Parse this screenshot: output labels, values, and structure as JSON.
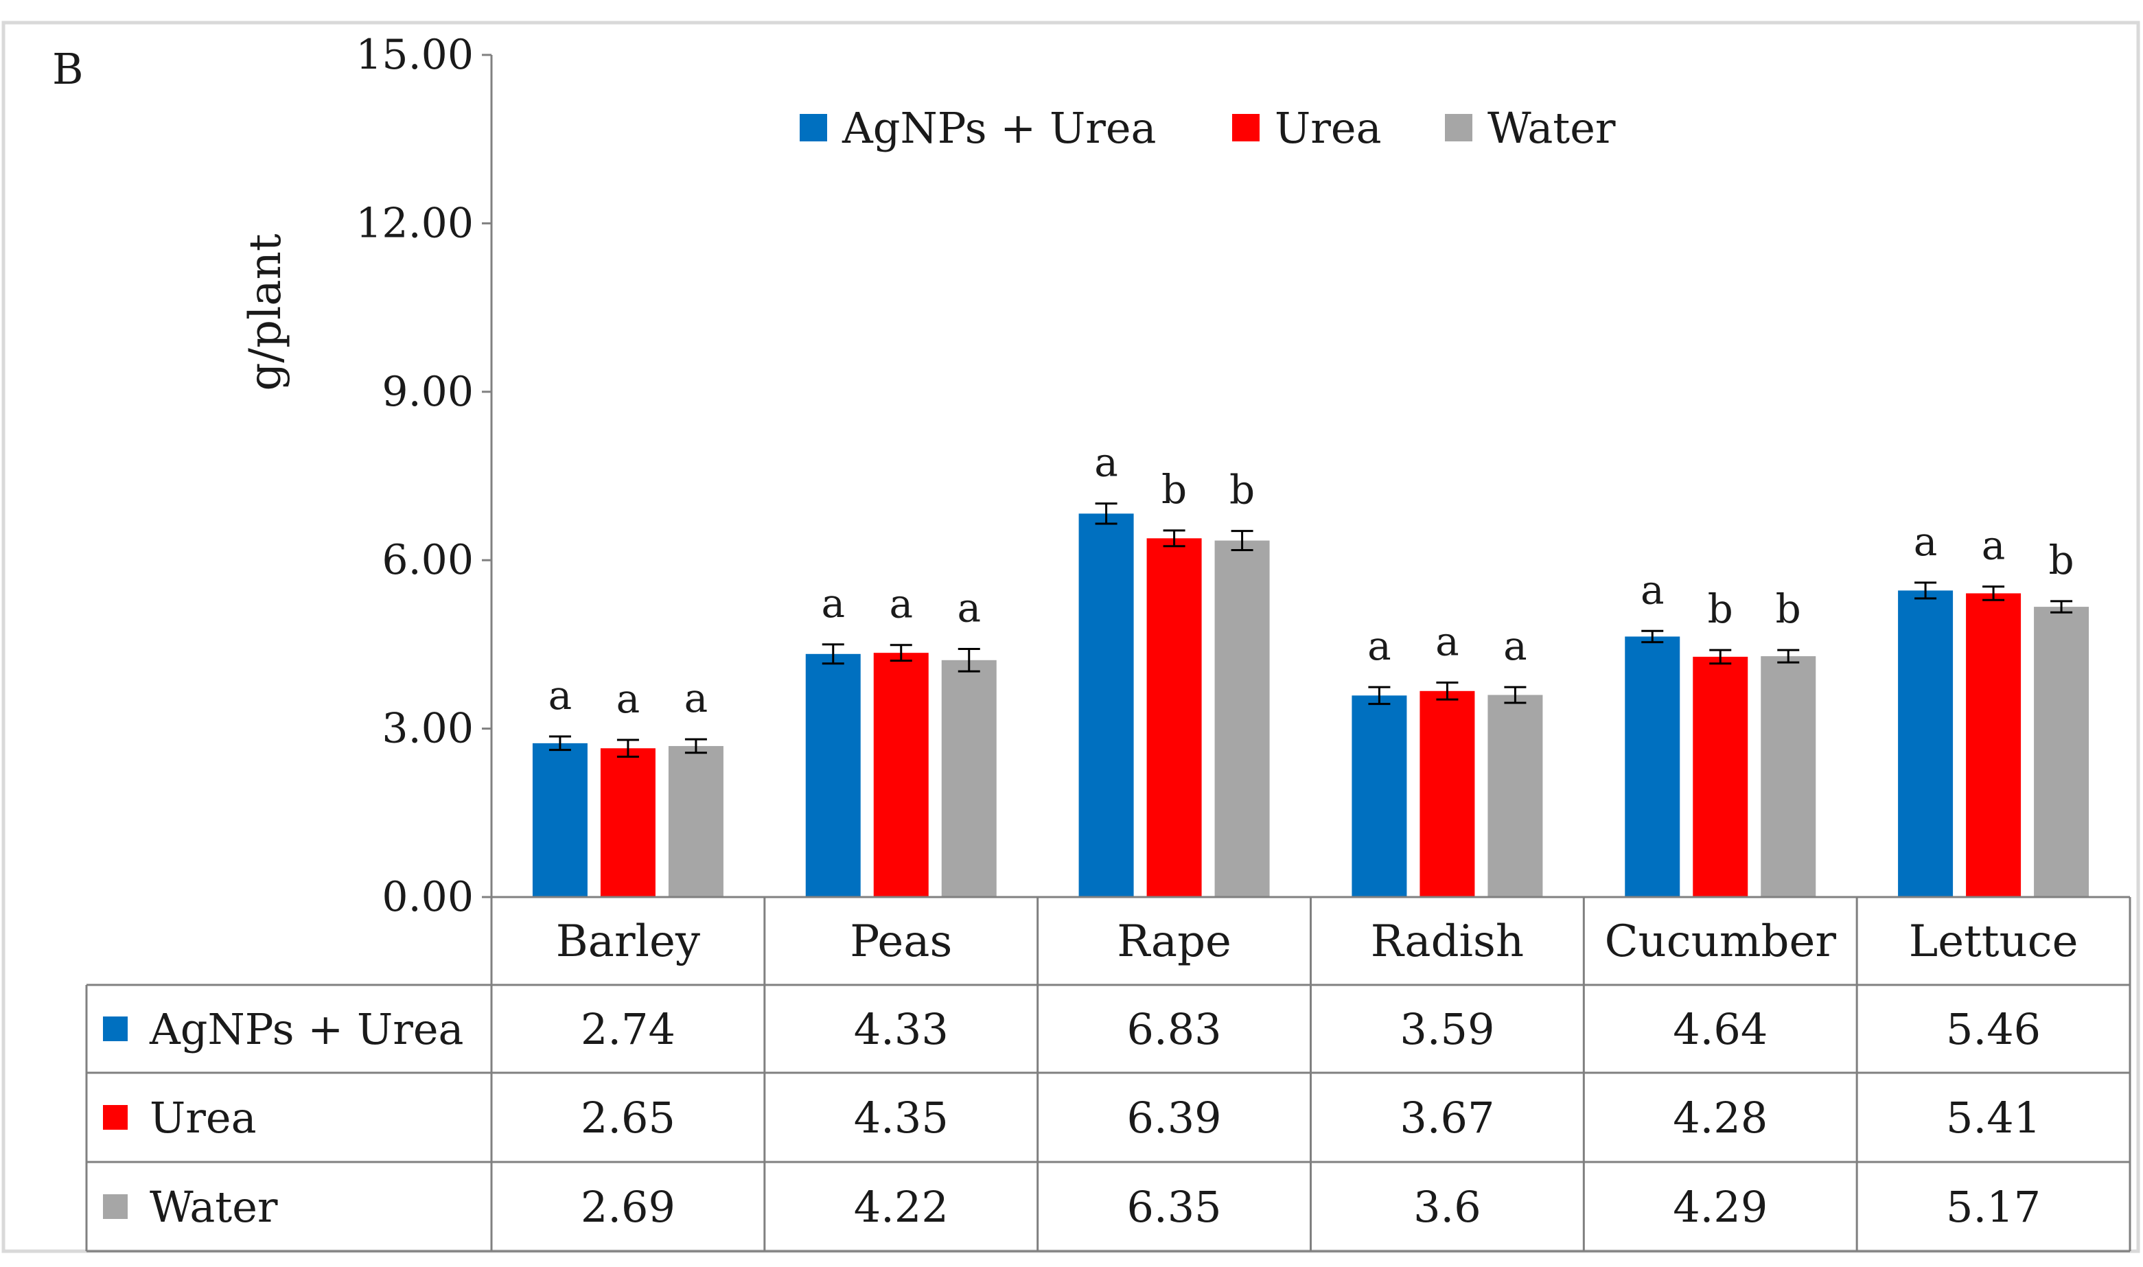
{
  "panel_label": "B",
  "chart_data": {
    "type": "bar",
    "title": "",
    "xlabel": "",
    "ylabel": "g/plant",
    "ylim": [
      0,
      15
    ],
    "y_ticks": [
      "0.00",
      "3.00",
      "6.00",
      "9.00",
      "12.00",
      "15.00"
    ],
    "y_tick_values": [
      0,
      3,
      6,
      9,
      12,
      15
    ],
    "grid": false,
    "legend_position": "top-center",
    "categories": [
      "Barley",
      "Peas",
      "Rape",
      "Radish",
      "Cucumber",
      "Lettuce"
    ],
    "series": [
      {
        "name": "AgNPs + Urea",
        "color": "#0070C0",
        "values": [
          2.74,
          4.33,
          6.83,
          3.59,
          4.64,
          5.46
        ],
        "table_values": [
          "2.74",
          "4.33",
          "6.83",
          "3.59",
          "4.64",
          "5.46"
        ],
        "errors": [
          0.12,
          0.17,
          0.18,
          0.15,
          0.1,
          0.14
        ],
        "letters": [
          "a",
          "a",
          "a",
          "a",
          "a",
          "a"
        ]
      },
      {
        "name": "Urea",
        "color": "#FF0000",
        "values": [
          2.65,
          4.35,
          6.39,
          3.67,
          4.28,
          5.41
        ],
        "table_values": [
          "2.65",
          "4.35",
          "6.39",
          "3.67",
          "4.28",
          "5.41"
        ],
        "errors": [
          0.15,
          0.14,
          0.14,
          0.15,
          0.12,
          0.12
        ],
        "letters": [
          "a",
          "a",
          "b",
          "a",
          "b",
          "a"
        ]
      },
      {
        "name": "Water",
        "color": "#A6A6A6",
        "values": [
          2.69,
          4.22,
          6.35,
          3.6,
          4.29,
          5.17
        ],
        "table_values": [
          "2.69",
          "4.22",
          "6.35",
          "3.6",
          "4.29",
          "5.17"
        ],
        "errors": [
          0.12,
          0.2,
          0.17,
          0.14,
          0.11,
          0.1
        ],
        "letters": [
          "a",
          "a",
          "b",
          "a",
          "b",
          "b"
        ]
      }
    ]
  }
}
